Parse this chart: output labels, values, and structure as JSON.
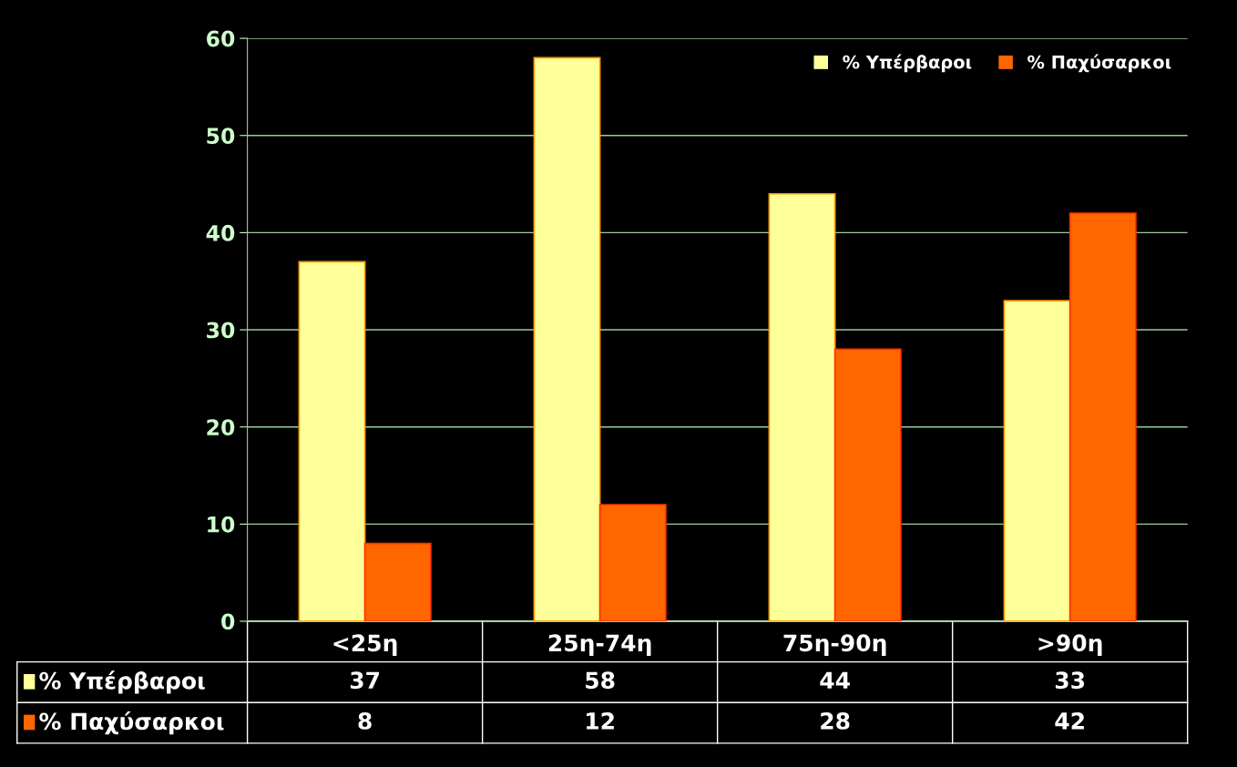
{
  "chart_data": {
    "type": "bar",
    "categories": [
      "<25η",
      "25η-74η",
      "75η-90η",
      ">90η"
    ],
    "series": [
      {
        "name": "% Υπέρβαροι",
        "color": "#ffff99",
        "values": [
          37,
          58,
          44,
          33
        ]
      },
      {
        "name": "% Παχύσαρκοι",
        "color": "#ff6600",
        "values": [
          8,
          12,
          28,
          42
        ]
      }
    ],
    "ylim": [
      0,
      60
    ],
    "yticks": [
      0,
      10,
      20,
      30,
      40,
      50,
      60
    ],
    "grid": "y",
    "legend": "top right",
    "data_labels": true
  }
}
